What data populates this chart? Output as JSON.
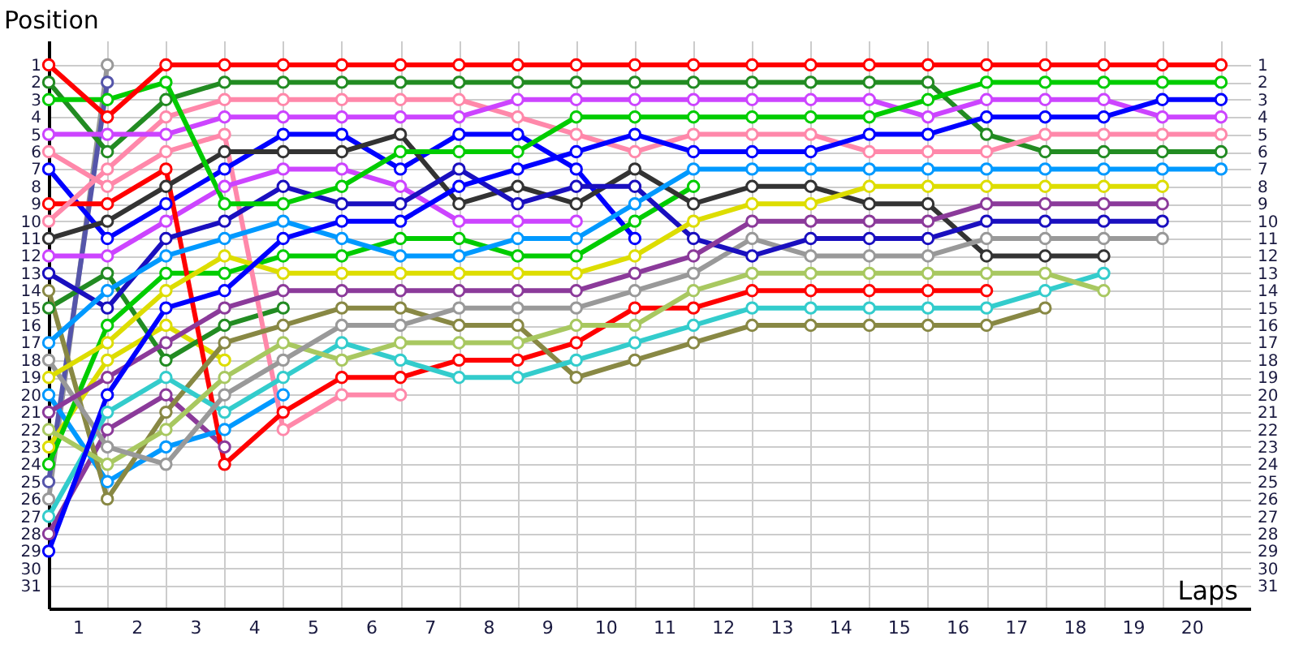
{
  "chart_data": {
    "type": "line",
    "xlabel": "Laps",
    "ylabel": "Position",
    "x": [
      0,
      1,
      2,
      3,
      4,
      5,
      6,
      7,
      8,
      9,
      10,
      11,
      12,
      13,
      14,
      15,
      16,
      17,
      18,
      19,
      20
    ],
    "xlim": [
      0,
      20.5
    ],
    "ylim": [
      32.3,
      -0.4
    ],
    "y2lim": [
      32.3,
      -0.4
    ],
    "xticks": [
      {
        "value": 0.5,
        "label": "1"
      },
      {
        "value": 1.5,
        "label": "2"
      },
      {
        "value": 2.5,
        "label": "3"
      },
      {
        "value": 3.5,
        "label": "4"
      },
      {
        "value": 4.5,
        "label": "5"
      },
      {
        "value": 5.5,
        "label": "6"
      },
      {
        "value": 6.5,
        "label": "7"
      },
      {
        "value": 7.5,
        "label": "8"
      },
      {
        "value": 8.5,
        "label": "9"
      },
      {
        "value": 9.5,
        "label": "10"
      },
      {
        "value": 10.5,
        "label": "11"
      },
      {
        "value": 11.5,
        "label": "12"
      },
      {
        "value": 12.5,
        "label": "13"
      },
      {
        "value": 13.5,
        "label": "14"
      },
      {
        "value": 14.5,
        "label": "15"
      },
      {
        "value": 15.5,
        "label": "16"
      },
      {
        "value": 16.5,
        "label": "17"
      },
      {
        "value": 17.5,
        "label": "18"
      },
      {
        "value": 18.5,
        "label": "19"
      },
      {
        "value": 19.5,
        "label": "20"
      },
      {
        "value": 1,
        "label": null
      },
      {
        "value": 2,
        "label": null
      },
      {
        "value": 3,
        "label": null
      },
      {
        "value": 4,
        "label": null
      },
      {
        "value": 5,
        "label": null
      },
      {
        "value": 6,
        "label": null
      },
      {
        "value": 7,
        "label": null
      },
      {
        "value": 8,
        "label": null
      },
      {
        "value": 9,
        "label": null
      },
      {
        "value": 10,
        "label": null
      },
      {
        "value": 11,
        "label": null
      },
      {
        "value": 12,
        "label": null
      },
      {
        "value": 13,
        "label": null
      },
      {
        "value": 14,
        "label": null
      },
      {
        "value": 15,
        "label": null
      },
      {
        "value": 16,
        "label": null
      },
      {
        "value": 17,
        "label": null
      },
      {
        "value": 18,
        "label": null
      },
      {
        "value": 19,
        "label": null
      },
      {
        "value": 20,
        "label": null
      }
    ],
    "yticks": [
      1,
      2,
      3,
      4,
      5,
      6,
      7,
      8,
      9,
      10,
      11,
      12,
      13,
      14,
      15,
      16,
      17,
      18,
      19,
      20,
      21,
      22,
      23,
      24,
      25,
      26,
      27,
      28,
      29,
      30,
      31
    ],
    "y2ticks": [
      1,
      2,
      3,
      4,
      5,
      6,
      7,
      8,
      9,
      10,
      11,
      12,
      13,
      14,
      15,
      16,
      17,
      18,
      19,
      20,
      21,
      22,
      23,
      24,
      25,
      26,
      27,
      28,
      29,
      30,
      31
    ],
    "grid": true,
    "legend": false,
    "marker": "circle",
    "line_style": "solid",
    "series": [
      {
        "color": "#999999",
        "values": [
          26,
          1,
          null,
          null,
          null,
          null,
          null,
          null,
          null,
          null,
          null,
          null,
          null,
          null,
          null,
          null,
          null,
          null,
          null,
          null,
          null
        ]
      },
      {
        "color": "#5555aa",
        "values": [
          25,
          2,
          null,
          null,
          null,
          null,
          null,
          null,
          null,
          null,
          null,
          null,
          null,
          null,
          null,
          null,
          null,
          null,
          null,
          null,
          null
        ]
      },
      {
        "color": "#dddd00",
        "values": [
          23,
          18,
          16,
          18,
          null,
          null,
          null,
          null,
          null,
          null,
          null,
          null,
          null,
          null,
          null,
          null,
          null,
          null,
          null,
          null,
          null
        ]
      },
      {
        "color": "#8b3a9a",
        "values": [
          28,
          22,
          20,
          23,
          null,
          null,
          null,
          null,
          null,
          null,
          null,
          null,
          null,
          null,
          null,
          null,
          null,
          null,
          null,
          null,
          null
        ]
      },
      {
        "color": "#228b22",
        "values": [
          15,
          13,
          18,
          16,
          15,
          null,
          null,
          null,
          null,
          null,
          null,
          null,
          null,
          null,
          null,
          null,
          null,
          null,
          null,
          null,
          null
        ]
      },
      {
        "color": "#0099ff",
        "values": [
          20,
          25,
          23,
          22,
          20,
          null,
          null,
          null,
          null,
          null,
          null,
          null,
          null,
          null,
          null,
          null,
          null,
          null,
          null,
          null,
          null
        ]
      },
      {
        "color": "#ff88aa",
        "values": [
          6,
          8,
          6,
          5,
          22,
          20,
          20,
          null,
          null,
          null,
          null,
          null,
          null,
          null,
          null,
          null,
          null,
          null,
          null,
          null,
          null
        ]
      },
      {
        "color": "#cc44ff",
        "values": [
          12,
          12,
          10,
          8,
          7,
          7,
          8,
          10,
          10,
          10,
          null,
          null,
          null,
          null,
          null,
          null,
          null,
          null,
          null,
          null,
          null
        ]
      },
      {
        "color": "#0000ff",
        "values": [
          7,
          11,
          9,
          7,
          5,
          5,
          7,
          5,
          5,
          7,
          11,
          null,
          null,
          null,
          null,
          null,
          null,
          null,
          null,
          null,
          null
        ]
      },
      {
        "color": "#00cc00",
        "values": [
          24,
          16,
          13,
          13,
          12,
          12,
          11,
          11,
          12,
          12,
          10,
          8,
          null,
          null,
          null,
          null,
          null,
          null,
          null,
          null,
          null
        ]
      },
      {
        "color": "#ff0000",
        "values": [
          9,
          9,
          7,
          24,
          21,
          19,
          19,
          18,
          18,
          17,
          15,
          15,
          14,
          14,
          14,
          14,
          14,
          null,
          null,
          null,
          null
        ]
      },
      {
        "color": "#888844",
        "values": [
          14,
          26,
          21,
          17,
          16,
          15,
          15,
          16,
          16,
          19,
          18,
          17,
          16,
          16,
          16,
          16,
          16,
          15,
          null,
          null,
          null
        ]
      },
      {
        "color": "#33cccc",
        "values": [
          27,
          21,
          19,
          21,
          19,
          17,
          18,
          19,
          19,
          18,
          17,
          16,
          15,
          15,
          15,
          15,
          15,
          14,
          13,
          null,
          null
        ]
      },
      {
        "color": "#a8c860",
        "values": [
          22,
          24,
          22,
          19,
          17,
          18,
          17,
          17,
          17,
          16,
          16,
          14,
          13,
          13,
          13,
          13,
          13,
          13,
          14,
          null,
          null
        ]
      },
      {
        "color": "#333333",
        "values": [
          11,
          10,
          8,
          6,
          6,
          6,
          5,
          9,
          8,
          9,
          7,
          9,
          8,
          8,
          9,
          9,
          12,
          12,
          12,
          null,
          null
        ]
      },
      {
        "color": "#999999",
        "values": [
          18,
          23,
          24,
          20,
          18,
          16,
          16,
          15,
          15,
          15,
          14,
          13,
          11,
          12,
          12,
          12,
          11,
          11,
          11,
          11,
          null
        ]
      },
      {
        "color": "#1a0fbf",
        "values": [
          13,
          15,
          11,
          10,
          8,
          9,
          9,
          7,
          9,
          8,
          8,
          11,
          12,
          11,
          11,
          11,
          10,
          10,
          10,
          10,
          null
        ]
      },
      {
        "color": "#8b3a9a",
        "values": [
          21,
          19,
          17,
          15,
          14,
          14,
          14,
          14,
          14,
          14,
          13,
          12,
          10,
          10,
          10,
          10,
          9,
          9,
          9,
          9,
          null
        ]
      },
      {
        "color": "#dddd00",
        "values": [
          19,
          17,
          14,
          12,
          13,
          13,
          13,
          13,
          13,
          13,
          12,
          10,
          9,
          9,
          8,
          8,
          8,
          8,
          8,
          8,
          null
        ]
      },
      {
        "color": "#0099ff",
        "values": [
          17,
          14,
          12,
          11,
          10,
          11,
          12,
          12,
          11,
          11,
          9,
          7,
          7,
          7,
          7,
          7,
          7,
          7,
          7,
          7,
          7
        ]
      },
      {
        "color": "#228b22",
        "values": [
          2,
          6,
          3,
          2,
          2,
          2,
          2,
          2,
          2,
          2,
          2,
          2,
          2,
          2,
          2,
          2,
          5,
          6,
          6,
          6,
          6
        ]
      },
      {
        "color": "#ff88aa",
        "values": [
          10,
          7,
          4,
          3,
          3,
          3,
          3,
          3,
          4,
          5,
          6,
          5,
          5,
          5,
          6,
          6,
          6,
          5,
          5,
          5,
          5
        ]
      },
      {
        "color": "#cc44ff",
        "values": [
          5,
          5,
          5,
          4,
          4,
          4,
          4,
          4,
          3,
          3,
          3,
          3,
          3,
          3,
          3,
          4,
          3,
          3,
          3,
          4,
          4
        ]
      },
      {
        "color": "#0000ff",
        "values": [
          29,
          20,
          15,
          14,
          11,
          10,
          10,
          8,
          7,
          6,
          5,
          6,
          6,
          6,
          5,
          5,
          4,
          4,
          4,
          3,
          3
        ]
      },
      {
        "color": "#00cc00",
        "values": [
          3,
          3,
          2,
          9,
          9,
          8,
          6,
          6,
          6,
          4,
          4,
          4,
          4,
          4,
          4,
          3,
          2,
          2,
          2,
          2,
          2
        ]
      },
      {
        "color": "#ff0000",
        "values": [
          1,
          4,
          1,
          1,
          1,
          1,
          1,
          1,
          1,
          1,
          1,
          1,
          1,
          1,
          1,
          1,
          1,
          1,
          1,
          1,
          1
        ]
      }
    ]
  }
}
